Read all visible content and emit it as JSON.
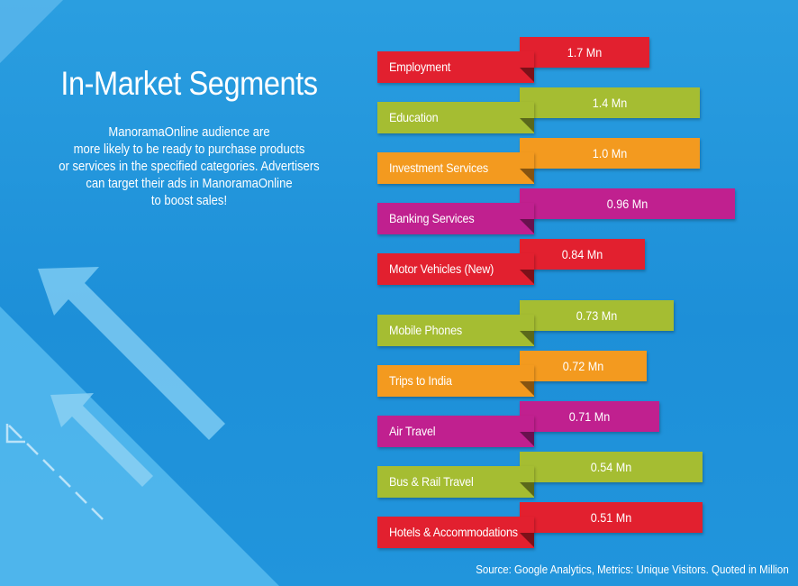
{
  "header": {
    "title": "In-Market Segments",
    "description_lines": [
      "ManoramaOnline audience are",
      "more likely to be ready to purchase products",
      "or services in the specified categories. Advertisers",
      "can target their ads in ManoramaOnline",
      "to boost sales!"
    ]
  },
  "colors": {
    "red": "#e2202f",
    "green": "#a5bd32",
    "orange": "#f39a1f",
    "magenta": "#c0208f",
    "background": "#1e90d8"
  },
  "chart_data": {
    "type": "bar",
    "orientation": "horizontal",
    "unit": "Mn",
    "categories": [
      "Employment",
      "Education",
      "Investment Services",
      "Banking Services",
      "Motor Vehicles (New)",
      "Mobile Phones",
      "Trips to India",
      "Air Travel",
      "Bus & Rail Travel",
      "Hotels & Accommodations"
    ],
    "values": [
      1.7,
      1.4,
      1.0,
      0.96,
      0.84,
      0.73,
      0.72,
      0.71,
      0.54,
      0.51
    ],
    "value_labels": [
      "1.7 Mn",
      "1.4 Mn",
      "1.0 Mn",
      "0.96 Mn",
      "0.84 Mn",
      "0.73 Mn",
      "0.72 Mn",
      "0.71 Mn",
      "0.54 Mn",
      "0.51 Mn"
    ],
    "bar_colors": [
      "red",
      "green",
      "orange",
      "magenta",
      "red",
      "green",
      "orange",
      "magenta",
      "green",
      "red"
    ],
    "source": "Source: Google Analytics, Metrics: Unique Visitors. Quoted in Million"
  }
}
